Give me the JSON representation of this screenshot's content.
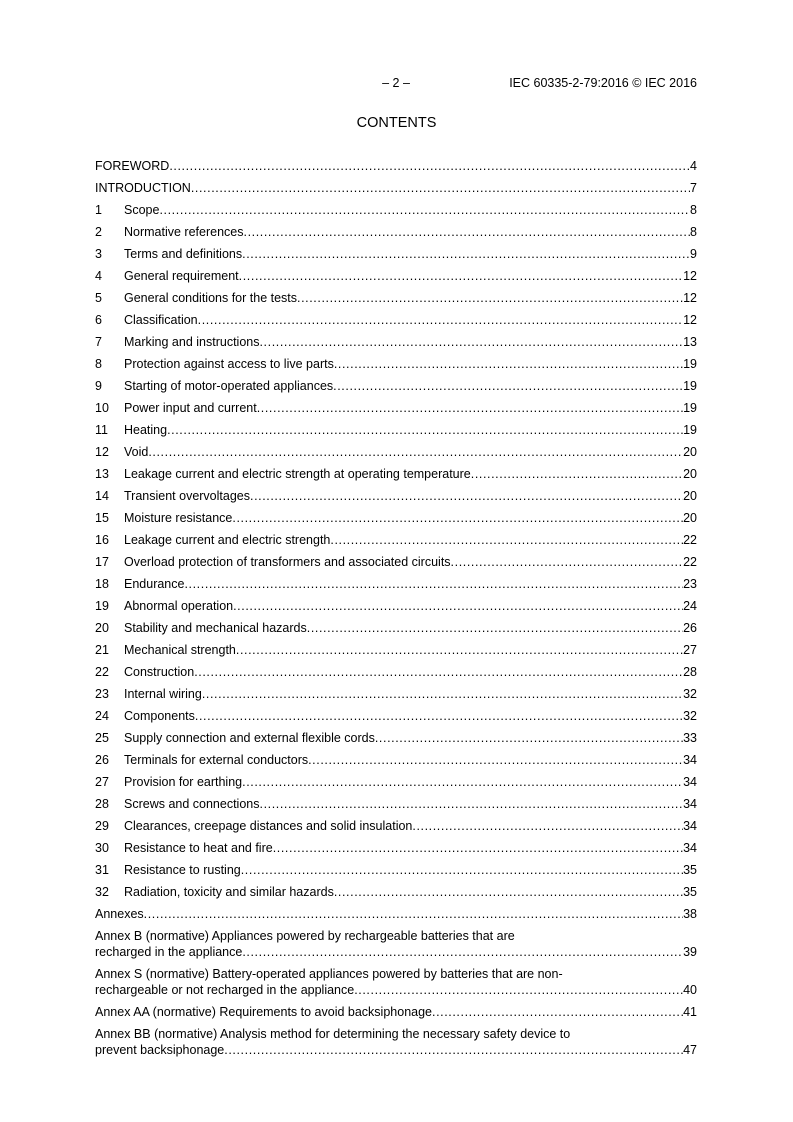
{
  "header": {
    "page_label": "– 2 –",
    "standard": "IEC 60335-2-79:2016 © IEC 2016"
  },
  "title": "CONTENTS",
  "entries": [
    {
      "num": "",
      "title": "FOREWORD",
      "page": "4"
    },
    {
      "num": "",
      "title": "INTRODUCTION",
      "page": "7"
    },
    {
      "num": "1",
      "title": "Scope",
      "page": "8"
    },
    {
      "num": "2",
      "title": "Normative references",
      "page": "8"
    },
    {
      "num": "3",
      "title": "Terms and definitions",
      "page": "9"
    },
    {
      "num": "4",
      "title": "General requirement",
      "page": "12"
    },
    {
      "num": "5",
      "title": "General conditions for the tests",
      "page": "12"
    },
    {
      "num": "6",
      "title": "Classification",
      "page": "12"
    },
    {
      "num": "7",
      "title": "Marking and instructions",
      "page": "13"
    },
    {
      "num": "8",
      "title": "Protection against access to live parts",
      "page": "19"
    },
    {
      "num": "9",
      "title": "Starting of motor-operated appliances",
      "page": "19"
    },
    {
      "num": "10",
      "title": "Power input and current",
      "page": "19"
    },
    {
      "num": "11",
      "title": "Heating",
      "page": "19"
    },
    {
      "num": "12",
      "title": "Void",
      "page": "20"
    },
    {
      "num": "13",
      "title": "Leakage current and electric strength at operating temperature",
      "page": "20"
    },
    {
      "num": "14",
      "title": "Transient overvoltages",
      "page": "20"
    },
    {
      "num": "15",
      "title": "Moisture resistance",
      "page": "20"
    },
    {
      "num": "16",
      "title": "Leakage current and electric strength",
      "page": "22"
    },
    {
      "num": "17",
      "title": "Overload protection of transformers and associated circuits",
      "page": "22"
    },
    {
      "num": "18",
      "title": "Endurance",
      "page": "23"
    },
    {
      "num": "19",
      "title": "Abnormal operation",
      "page": "24"
    },
    {
      "num": "20",
      "title": "Stability and mechanical hazards",
      "page": "26"
    },
    {
      "num": "21",
      "title": "Mechanical strength",
      "page": "27"
    },
    {
      "num": "22",
      "title": "Construction",
      "page": "28"
    },
    {
      "num": "23",
      "title": "Internal wiring",
      "page": "32"
    },
    {
      "num": "24",
      "title": "Components",
      "page": "32"
    },
    {
      "num": "25",
      "title": "Supply connection and external flexible cords",
      "page": "33"
    },
    {
      "num": "26",
      "title": "Terminals for external conductors",
      "page": "34"
    },
    {
      "num": "27",
      "title": "Provision for earthing",
      "page": "34"
    },
    {
      "num": "28",
      "title": "Screws and connections",
      "page": "34"
    },
    {
      "num": "29",
      "title": "Clearances, creepage distances and solid insulation",
      "page": "34"
    },
    {
      "num": "30",
      "title": "Resistance to heat and fire",
      "page": "34"
    },
    {
      "num": "31",
      "title": "Resistance to rusting",
      "page": "35"
    },
    {
      "num": "32",
      "title": "Radiation, toxicity and similar hazards",
      "page": "35"
    },
    {
      "num": "",
      "title": "Annexes",
      "page": "38"
    }
  ],
  "annexes": [
    {
      "lines": [
        "Annex B (normative)  Appliances powered by rechargeable batteries that are",
        "recharged in the appliance"
      ],
      "page": "39"
    },
    {
      "lines": [
        "Annex S (normative)  Battery-operated appliances powered by batteries that are non-",
        "rechargeable or not recharged in the appliance"
      ],
      "page": "40"
    },
    {
      "lines": [
        "Annex AA (normative)  Requirements to avoid backsiphonage"
      ],
      "page": "41"
    },
    {
      "lines": [
        "Annex BB (normative)  Analysis method for determining the necessary safety device to",
        "prevent backsiphonage"
      ],
      "page": "47"
    }
  ]
}
